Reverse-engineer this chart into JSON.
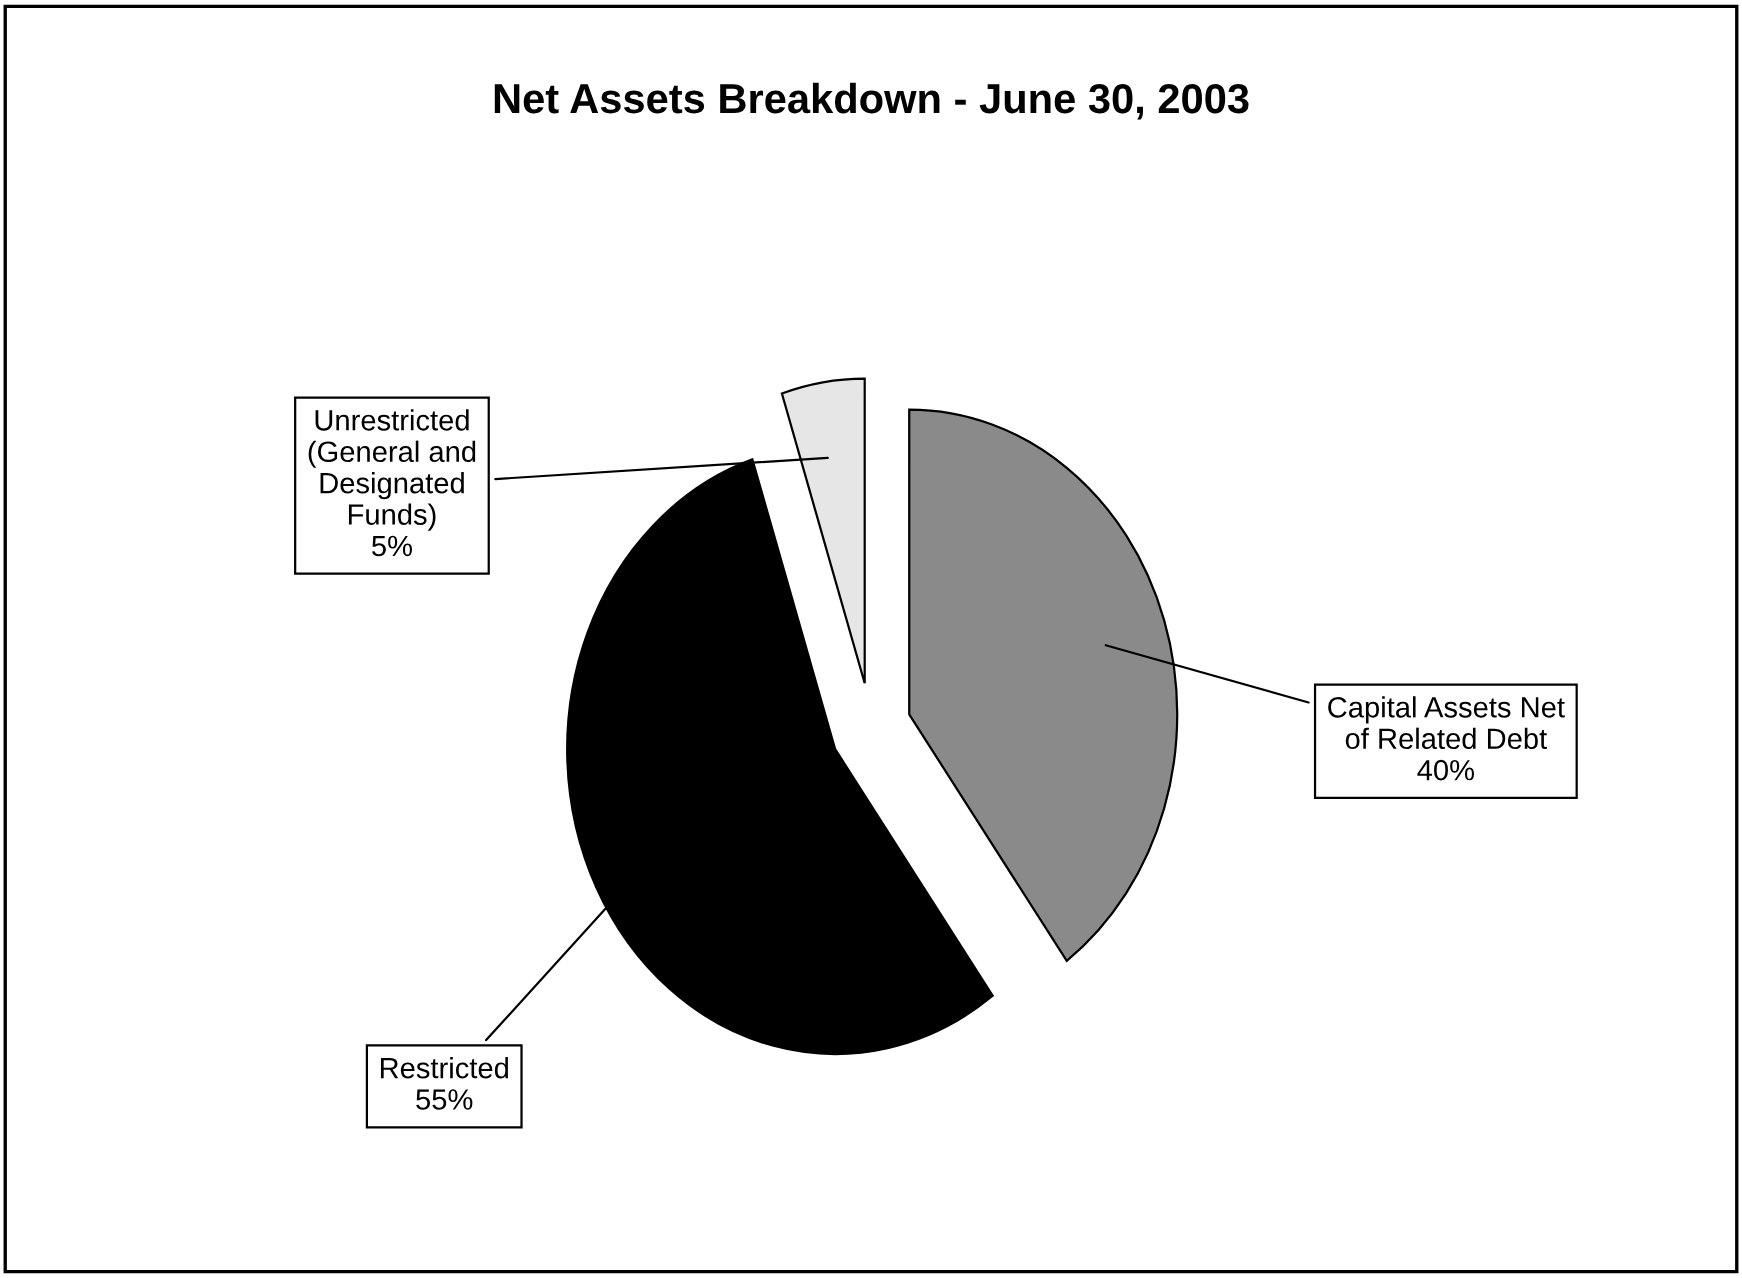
{
  "chart_data": {
    "type": "pie",
    "title": "Net Assets Breakdown - June 30, 2003",
    "categories": [
      "Capital Assets Net\nof Related Debt",
      "Restricted",
      "Unrestricted\n(General and\nDesignated\nFunds)"
    ],
    "values": [
      40,
      55,
      5
    ],
    "colors": [
      "#8a8a8a",
      "#000000",
      "#e6e6e6"
    ],
    "value_labels": [
      "40%",
      "55%",
      "5%"
    ],
    "legend": false
  }
}
